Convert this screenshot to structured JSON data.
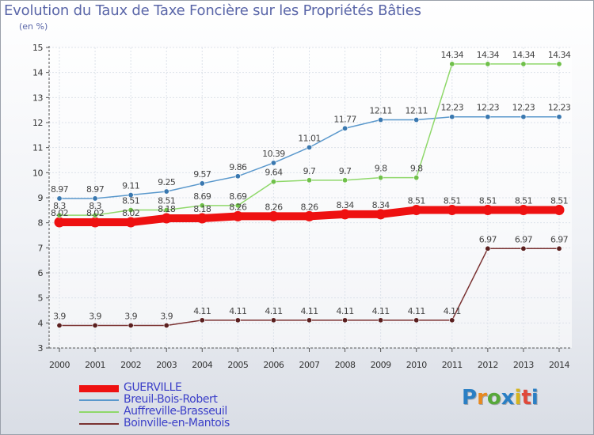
{
  "title": "Evolution du Taux de Taxe Foncière sur les Propriétés Bâties",
  "subtitle": "(en %)",
  "logo": {
    "text": "Proxiti",
    "colors": [
      "#2a7fc4",
      "#e8891e",
      "#57a83a",
      "#2a7fc4",
      "#d6b41e",
      "#e0483a",
      "#2a7fc4"
    ]
  },
  "chart_data": {
    "type": "line",
    "title": "Evolution du Taux de Taxe Foncière sur les Propriétés Bâties",
    "ylabel": "(en %)",
    "xlabel": "",
    "categories": [
      "2000",
      "2001",
      "2002",
      "2003",
      "2004",
      "2005",
      "2006",
      "2007",
      "2008",
      "2009",
      "2010",
      "2011",
      "2012",
      "2013",
      "2014"
    ],
    "ylim": [
      3,
      15
    ],
    "yticks": [
      "3",
      "4",
      "5",
      "6",
      "7",
      "8",
      "9",
      "10",
      "11",
      "12",
      "13",
      "14",
      "15"
    ],
    "grid": true,
    "legend": "bottom-left",
    "series": [
      {
        "name": "GUERVILLE",
        "color": "#ee1111",
        "width": 10,
        "dot": 6.5,
        "values": [
          8.02,
          8.02,
          8.02,
          8.18,
          8.18,
          8.26,
          8.26,
          8.26,
          8.34,
          8.34,
          8.51,
          8.51,
          8.51,
          8.51,
          8.51
        ],
        "labels": [
          "8.02",
          "8.02",
          "8.02",
          "8.18",
          "8.18",
          "8.26",
          "8.26",
          "8.26",
          "8.34",
          "8.34",
          "8.51",
          "8.51",
          "8.51",
          "8.51",
          "8.51"
        ]
      },
      {
        "name": "Breuil-Bois-Robert",
        "color": "#5a98cc",
        "dotColor": "#3a78b0",
        "width": 1.5,
        "dot": 3.2,
        "values": [
          8.97,
          8.97,
          9.11,
          9.25,
          9.57,
          9.86,
          10.39,
          11.01,
          11.77,
          12.11,
          12.11,
          12.23,
          12.23,
          12.23,
          12.23
        ],
        "labels": [
          "8.97",
          "8.97",
          "9.11",
          "9.25",
          "9.57",
          "9.86",
          "10.39",
          "11.01",
          "11.77",
          "12.11",
          "12.11",
          "12.23",
          "12.23",
          "12.23",
          "12.23"
        ]
      },
      {
        "name": "Auffreville-Brasseuil",
        "color": "#8fd86a",
        "dotColor": "#6fc04a",
        "width": 1.5,
        "dot": 3.2,
        "values": [
          8.3,
          8.3,
          8.51,
          8.51,
          8.69,
          8.69,
          9.64,
          9.7,
          9.7,
          9.8,
          9.8,
          14.34,
          14.34,
          14.34,
          14.34
        ],
        "labels": [
          "8.3",
          "8.3",
          "8.51",
          "8.51",
          "8.69",
          "8.69",
          "9.64",
          "9.7",
          "9.7",
          "9.8",
          "9.8",
          "14.34",
          "14.34",
          "14.34",
          "14.34"
        ]
      },
      {
        "name": "Boinville-en-Mantois",
        "color": "#7a3232",
        "dotColor": "#5a1f1f",
        "width": 1.5,
        "dot": 3.2,
        "values": [
          3.9,
          3.9,
          3.9,
          3.9,
          4.11,
          4.11,
          4.11,
          4.11,
          4.11,
          4.11,
          4.11,
          4.11,
          6.97,
          6.97,
          6.97
        ],
        "labels": [
          "3.9",
          "3.9",
          "3.9",
          "3.9",
          "4.11",
          "4.11",
          "4.11",
          "4.11",
          "4.11",
          "4.11",
          "4.11",
          "4.11",
          "6.97",
          "6.97",
          "6.97"
        ]
      }
    ]
  }
}
